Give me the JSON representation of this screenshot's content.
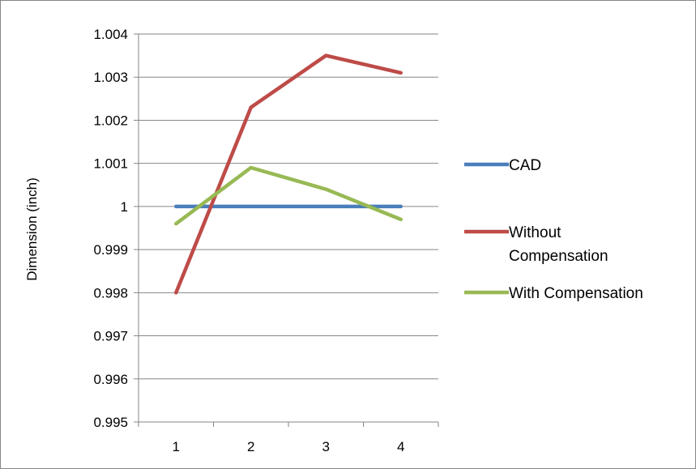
{
  "chart_data": {
    "type": "line",
    "title": "",
    "xlabel": "",
    "ylabel": "Dimension (inch)",
    "categories": [
      "1",
      "2",
      "3",
      "4"
    ],
    "y_ticks": [
      "0.995",
      "0.996",
      "0.997",
      "0.998",
      "0.999",
      "1",
      "1.001",
      "1.002",
      "1.003",
      "1.004"
    ],
    "ylim": [
      0.995,
      1.004
    ],
    "grid": true,
    "legend_position": "right",
    "series": [
      {
        "name": "CAD",
        "values": [
          1.0,
          1.0,
          1.0,
          1.0
        ],
        "color": "#4a7ebb"
      },
      {
        "name": "Without Compensation",
        "legend_lines": [
          "Without",
          "Compensation"
        ],
        "values": [
          0.998,
          1.0023,
          1.0035,
          1.0031
        ],
        "color": "#be4b48"
      },
      {
        "name": "With Compensation",
        "values": [
          0.9996,
          1.0009,
          1.0004,
          0.9997
        ],
        "color": "#98b954"
      }
    ]
  }
}
